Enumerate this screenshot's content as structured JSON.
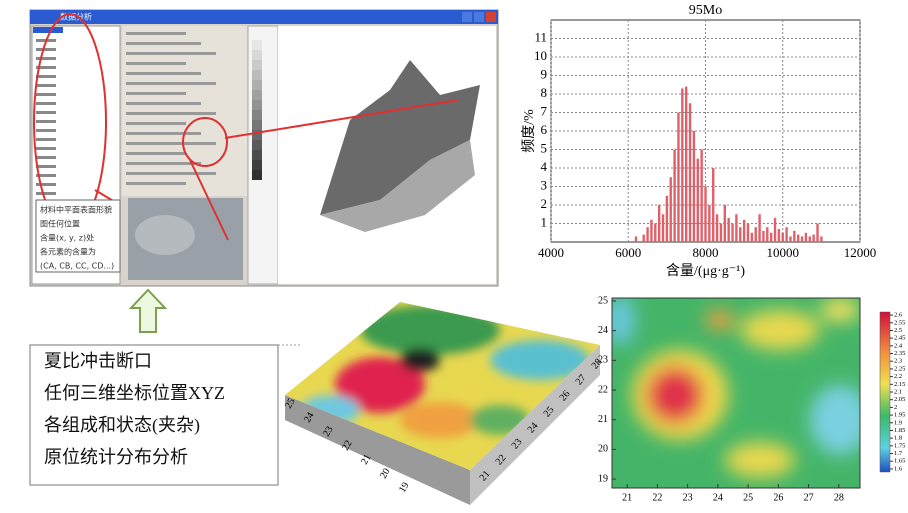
{
  "screenshot": {
    "window_title": "数据分析",
    "note_lines": [
      "材料中平面表面形貌",
      "图任何位置",
      "含量(x, y, z)处",
      "各元素的含量为",
      "(CA, CB, CC, CD...)"
    ]
  },
  "callout": {
    "lines": [
      "夏比冲击断口",
      "任何三维坐标位置XYZ",
      "各组成和状态(夹杂)",
      "原位统计分布分析"
    ]
  },
  "surface": {
    "left_ticks": [
      25,
      24,
      23,
      22,
      21,
      20,
      19
    ],
    "right_ticks": [
      21,
      22,
      23,
      24,
      25,
      26,
      27,
      28
    ]
  },
  "chart_data": {
    "type": "bar",
    "title": "95Mo",
    "x_label": "含量/(μg·g⁻¹)",
    "y_label": "频度/%",
    "color": "#e0606a",
    "grid": true,
    "xlim": [
      4000,
      12000
    ],
    "xticks": [
      4000,
      6000,
      8000,
      10000,
      12000
    ],
    "ylim": [
      0,
      12
    ],
    "yticks": [
      1,
      2,
      3,
      4,
      5,
      6,
      7,
      8,
      9,
      10,
      11
    ],
    "x": [
      6200,
      6400,
      6500,
      6600,
      6700,
      6800,
      6900,
      7000,
      7100,
      7200,
      7300,
      7400,
      7500,
      7600,
      7700,
      7800,
      7900,
      8000,
      8100,
      8200,
      8300,
      8400,
      8500,
      8600,
      8700,
      8800,
      8900,
      9000,
      9100,
      9200,
      9300,
      9400,
      9500,
      9600,
      9700,
      9800,
      9900,
      10000,
      10100,
      10200,
      10300,
      10400,
      10500,
      10600,
      10700,
      10800,
      10900,
      11000
    ],
    "values": [
      0.3,
      0.4,
      0.8,
      1.2,
      1.0,
      2.0,
      1.5,
      2.5,
      3.5,
      5.0,
      7.0,
      8.3,
      8.4,
      7.5,
      6.0,
      4.5,
      5.0,
      3.0,
      2.0,
      4.0,
      1.5,
      1.0,
      2.0,
      1.3,
      1.0,
      1.5,
      0.8,
      1.2,
      1.0,
      0.5,
      0.8,
      1.5,
      0.6,
      0.8,
      0.5,
      1.3,
      0.7,
      0.5,
      0.8,
      0.3,
      0.6,
      0.4,
      0.3,
      0.5,
      0.3,
      0.4,
      1.0,
      0.3
    ]
  },
  "heatmap": {
    "xticks": [
      21,
      22,
      23,
      24,
      25,
      26,
      27,
      28
    ],
    "xlim": [
      20.5,
      28.7
    ],
    "yticks": [
      19,
      20,
      21,
      22,
      23,
      24,
      25
    ],
    "ylim": [
      18.7,
      25.1
    ],
    "colorbar_ticks": [
      2.6,
      2.55,
      2.5,
      2.45,
      2.4,
      2.35,
      2.3,
      2.25,
      2.2,
      2.15,
      2.1,
      2.05,
      2,
      1.95,
      1.9,
      1.85,
      1.8,
      1.75,
      1.7,
      1.65,
      1.6
    ],
    "colorbar_lim": [
      1.58,
      2.62
    ]
  }
}
